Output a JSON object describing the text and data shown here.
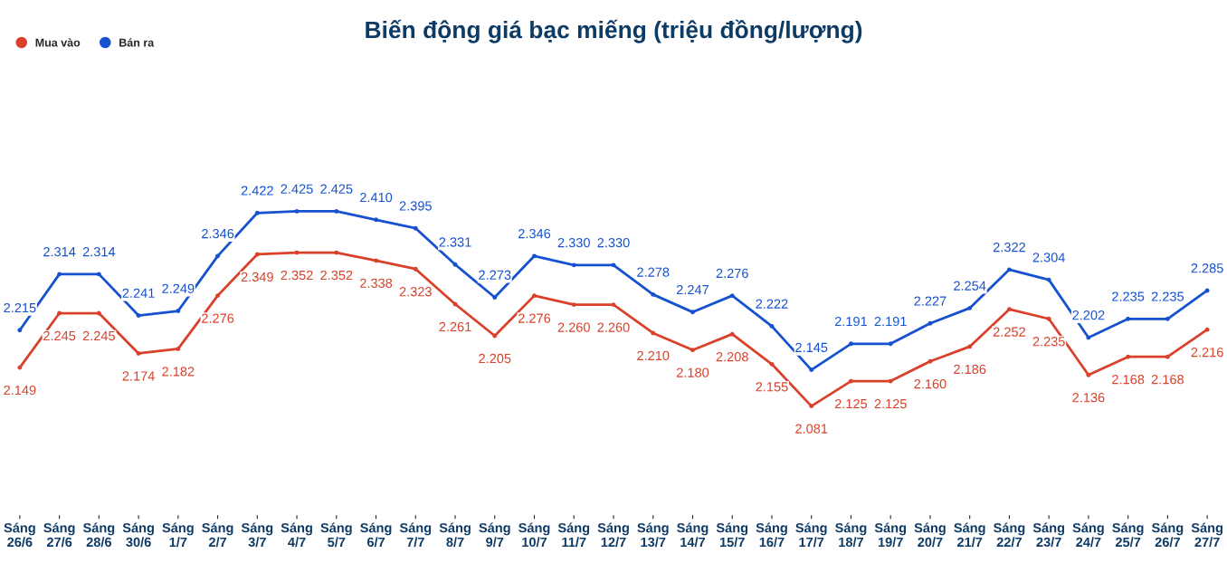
{
  "chart_data": {
    "type": "line",
    "title": "Biến động giá bạc miếng (triệu đồng/lượng)",
    "categories": [
      "Sáng\n26/6",
      "Sáng\n27/6",
      "Sáng\n28/6",
      "Sáng\n30/6",
      "Sáng\n1/7",
      "Sáng\n2/7",
      "Sáng\n3/7",
      "Sáng\n4/7",
      "Sáng\n5/7",
      "Sáng\n6/7",
      "Sáng\n7/7",
      "Sáng\n8/7",
      "Sáng\n9/7",
      "Sáng\n10/7",
      "Sáng\n11/7",
      "Sáng\n12/7",
      "Sáng\n13/7",
      "Sáng\n14/7",
      "Sáng\n15/7",
      "Sáng\n16/7",
      "Sáng\n17/7",
      "Sáng\n18/7",
      "Sáng\n19/7",
      "Sáng\n20/7",
      "Sáng\n21/7",
      "Sáng\n22/7",
      "Sáng\n23/7",
      "Sáng\n24/7",
      "Sáng\n25/7",
      "Sáng\n26/7",
      "Sáng\n27/7"
    ],
    "series": [
      {
        "name": "Mua vào",
        "color": "#d9412b",
        "values": [
          2.149,
          2.245,
          2.245,
          2.174,
          2.182,
          2.276,
          2.349,
          2.352,
          2.352,
          2.338,
          2.323,
          2.261,
          2.205,
          2.276,
          2.26,
          2.26,
          2.21,
          2.18,
          2.208,
          2.155,
          2.081,
          2.125,
          2.125,
          2.16,
          2.186,
          2.252,
          2.235,
          2.136,
          2.168,
          2.168,
          2.216
        ],
        "value_labels": [
          "2.149",
          "2.245",
          "2.245",
          "2.174",
          "2.182",
          "2.276",
          "2.349",
          "2.352",
          "2.352",
          "2.338",
          "2.323",
          "2.261",
          "2.205",
          "2.276",
          "2.260",
          "2.260",
          "2.210",
          "2.180",
          "2.208",
          "2.155",
          "2.081",
          "2.125",
          "2.125",
          "2.160",
          "2.186",
          "2.252",
          "2.235",
          "2.136",
          "2.168",
          "2.168",
          "2.216"
        ]
      },
      {
        "name": "Bán ra",
        "color": "#1652d0",
        "values": [
          2.215,
          2.314,
          2.314,
          2.241,
          2.249,
          2.346,
          2.422,
          2.425,
          2.425,
          2.41,
          2.395,
          2.331,
          2.273,
          2.346,
          2.33,
          2.33,
          2.278,
          2.247,
          2.276,
          2.222,
          2.145,
          2.191,
          2.191,
          2.227,
          2.254,
          2.322,
          2.304,
          2.202,
          2.235,
          2.235,
          2.285
        ],
        "value_labels": [
          "2.215",
          "2.314",
          "2.314",
          "2.241",
          "2.249",
          "2.346",
          "2.422",
          "2.425",
          "2.425",
          "2.410",
          "2.395",
          "2.331",
          "2.273",
          "2.346",
          "2.330",
          "2.330",
          "2.278",
          "2.247",
          "2.276",
          "2.222",
          "2.145",
          "2.191",
          "2.191",
          "2.227",
          "2.254",
          "2.322",
          "2.304",
          "2.202",
          "2.235",
          "2.235",
          "2.285"
        ]
      }
    ],
    "legend": "top left",
    "marker": "circle",
    "line_style": "solid",
    "grid": false,
    "tick_labels": "x"
  }
}
